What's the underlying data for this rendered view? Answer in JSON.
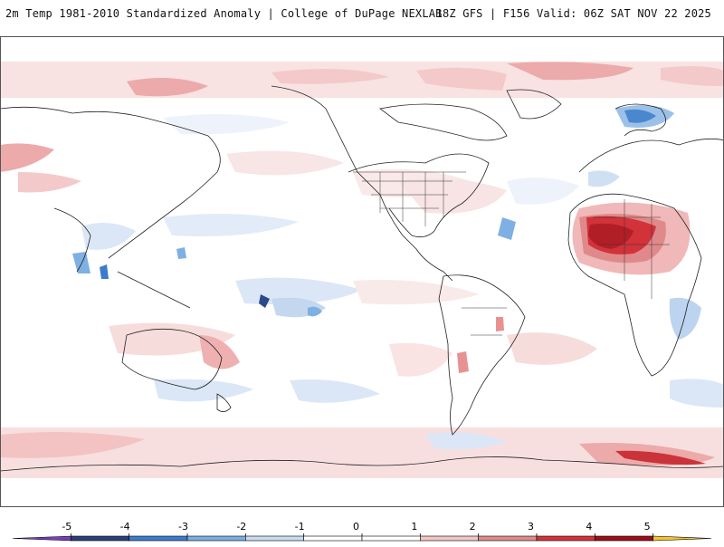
{
  "header": {
    "title": "2m Temp 1981-2010 Standardized Anomaly | College of DuPage NEXLAB",
    "run_info": "18Z GFS | F156 Valid: 06Z SAT NOV 22 2025"
  },
  "colorbar": {
    "ticks": [
      "-5",
      "-4",
      "-3",
      "-2",
      "-1",
      "0",
      "1",
      "2",
      "3",
      "4",
      "5"
    ],
    "colors": [
      "#7a3fb0",
      "#2a3f7a",
      "#3b7ccc",
      "#79aee0",
      "#c9dcf0",
      "#ffffff",
      "#ffffff",
      "#f2c6c6",
      "#e08a8a",
      "#d2323a",
      "#9a0f1a",
      "#f4c430"
    ]
  }
}
